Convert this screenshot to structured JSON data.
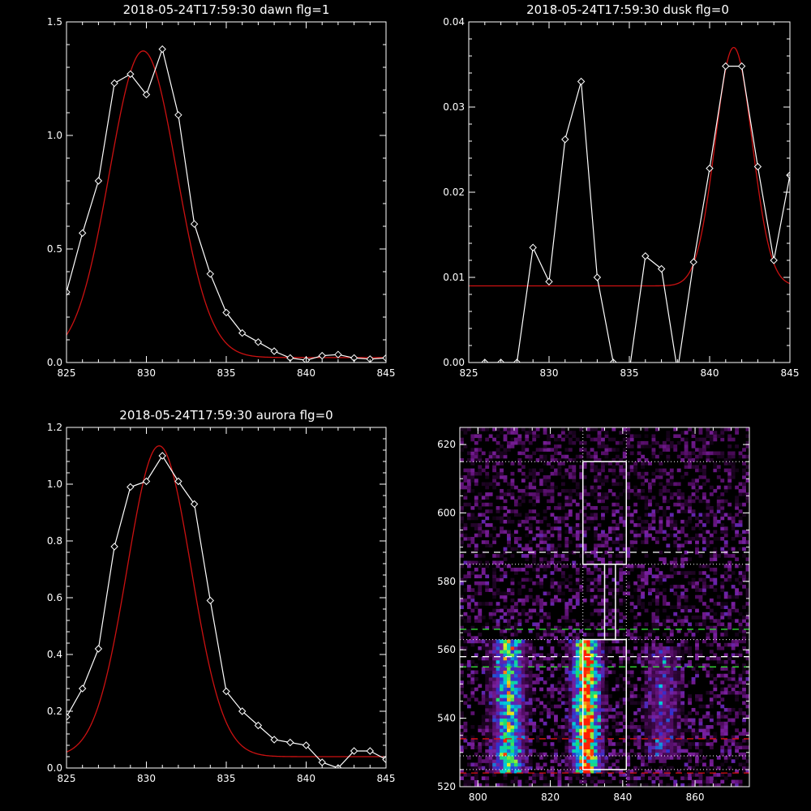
{
  "colors": {
    "background": "#000000",
    "axes": "#ffffff",
    "data_line": "#ffffff",
    "fit_line": "#cc1111",
    "guide_white": "#ffffff",
    "guide_green": "#33dd33",
    "guide_red": "#dd1111",
    "heatmap_colormap": [
      "#000000",
      "#4b0a5a",
      "#7a1f9b",
      "#3030d0",
      "#00c8e0",
      "#20e060",
      "#e8f020",
      "#ff2000"
    ]
  },
  "chart_data": [
    {
      "type": "line",
      "title": "2018-05-24T17:59:30 dawn flg=1",
      "xlim": [
        825,
        845
      ],
      "ylim": [
        0,
        1.5
      ],
      "xticks": [
        "825",
        "830",
        "835",
        "840",
        "845"
      ],
      "yticks": [
        "0.0",
        "0.5",
        "1.0",
        "1.5"
      ],
      "series": [
        {
          "kind": "data",
          "marker": "diamond",
          "x": [
            825,
            826,
            827,
            828,
            829,
            830,
            831,
            832,
            833,
            834,
            835,
            836,
            837,
            838,
            839,
            840,
            841,
            842,
            843,
            844,
            845
          ],
          "y": [
            0.31,
            0.57,
            0.8,
            1.23,
            1.27,
            1.18,
            1.38,
            1.09,
            0.61,
            0.39,
            0.22,
            0.13,
            0.09,
            0.05,
            0.02,
            0.01,
            0.03,
            0.035,
            0.02,
            0.015,
            0.02
          ]
        },
        {
          "kind": "fit",
          "model": {
            "amplitude": 1.35,
            "center": 829.8,
            "sigma": 2.1,
            "offset": 0.022
          }
        }
      ]
    },
    {
      "type": "line",
      "title": "2018-05-24T17:59:30 dusk flg=0",
      "xlim": [
        825,
        845
      ],
      "ylim": [
        0,
        0.04
      ],
      "xticks": [
        "825",
        "830",
        "835",
        "840",
        "845"
      ],
      "yticks": [
        "0.00",
        "0.01",
        "0.02",
        "0.03",
        "0.04"
      ],
      "series": [
        {
          "kind": "data",
          "marker": "diamond",
          "x": [
            825,
            826,
            827,
            828,
            829,
            830,
            831,
            832,
            833,
            834,
            835,
            836,
            837,
            838,
            839,
            840,
            841,
            842,
            843,
            844,
            845
          ],
          "y": [
            -0.001,
            0.0,
            0.0,
            0.0,
            0.0135,
            0.0095,
            0.0262,
            0.033,
            0.01,
            0.0,
            -0.001,
            0.0125,
            0.011,
            -0.001,
            0.0118,
            0.0228,
            0.0348,
            0.0348,
            0.023,
            0.012,
            0.022
          ]
        },
        {
          "kind": "fit",
          "model": {
            "amplitude": 0.028,
            "center": 841.5,
            "sigma": 1.15,
            "offset": 0.009
          }
        }
      ]
    },
    {
      "type": "line",
      "title": "2018-05-24T17:59:30 aurora flg=0",
      "xlim": [
        825,
        845
      ],
      "ylim": [
        0,
        1.2
      ],
      "xticks": [
        "825",
        "830",
        "835",
        "840",
        "845"
      ],
      "yticks": [
        "0.0",
        "0.2",
        "0.4",
        "0.6",
        "0.8",
        "1.0",
        "1.2"
      ],
      "series": [
        {
          "kind": "data",
          "marker": "diamond",
          "x": [
            825,
            826,
            827,
            828,
            829,
            830,
            831,
            832,
            833,
            834,
            835,
            836,
            837,
            838,
            839,
            840,
            841,
            842,
            843,
            844,
            845
          ],
          "y": [
            0.18,
            0.28,
            0.42,
            0.78,
            0.99,
            1.01,
            1.1,
            1.01,
            0.93,
            0.59,
            0.27,
            0.2,
            0.15,
            0.1,
            0.09,
            0.08,
            0.02,
            0.0,
            0.06,
            0.06,
            0.03
          ]
        },
        {
          "kind": "fit",
          "model": {
            "amplitude": 1.095,
            "center": 830.8,
            "sigma": 2.0,
            "offset": 0.04
          }
        }
      ]
    },
    {
      "type": "heatmap",
      "xlim": [
        795,
        875
      ],
      "ylim": [
        520,
        625
      ],
      "xticks": [
        "800",
        "820",
        "840",
        "860"
      ],
      "yticks": [
        "520",
        "540",
        "560",
        "580",
        "600",
        "620"
      ],
      "bands": [
        {
          "center": 808.5,
          "width": 2.6,
          "y_range": [
            524,
            562
          ],
          "peak": 0.62
        },
        {
          "center": 830,
          "width": 2.2,
          "y_range": [
            524,
            562
          ],
          "peak": 1.0
        },
        {
          "center": 851,
          "width": 2.8,
          "y_range": [
            528,
            560
          ],
          "peak": 0.22
        }
      ],
      "noise_level": 0.12,
      "guides": {
        "dotted_white_vertical_x": [
          829,
          841
        ],
        "dotted_white_horizontal_y": [
          615,
          585,
          563,
          525,
          529
        ],
        "dashed_white_horizontal_y": [
          588.5,
          558
        ],
        "dashed_green_horizontal_y": [
          566,
          555
        ],
        "dashed_red_horizontal_y": [
          534,
          524
        ],
        "boxes": [
          {
            "x": [
              829,
              841
            ],
            "y": [
              585,
              615
            ]
          },
          {
            "x": [
              835,
              838
            ],
            "y": [
              563,
              585
            ]
          },
          {
            "x": [
              829,
              841
            ],
            "y": [
              525,
              563
            ]
          }
        ]
      }
    }
  ]
}
